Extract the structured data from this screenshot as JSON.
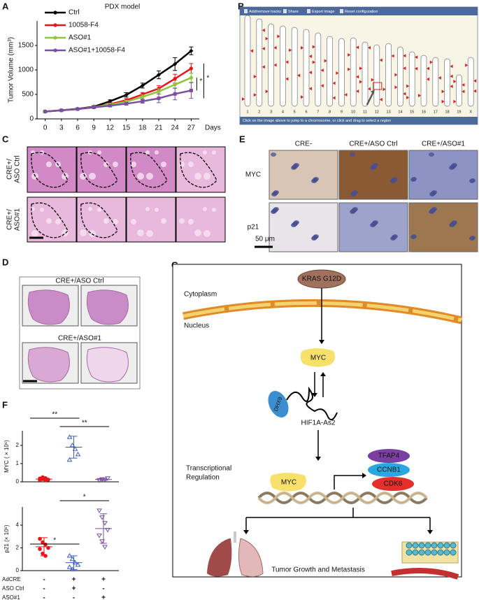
{
  "panel_letters": [
    "A",
    "B",
    "C",
    "D",
    "E",
    "F",
    "G"
  ],
  "chart_data": [
    {
      "type": "line",
      "title": "PDX model",
      "y_label": "Tumor Volume (mm³)",
      "x_label": "Days",
      "x": [
        0,
        3,
        6,
        9,
        12,
        15,
        18,
        21,
        24,
        27
      ],
      "xlim": [
        -1.5,
        28.5
      ],
      "xticks": [
        0,
        3,
        6,
        9,
        12,
        15,
        18,
        21,
        24,
        27
      ],
      "ylim": [
        0,
        2000
      ],
      "yticks": [
        0,
        500,
        1000,
        1500
      ],
      "series": [
        {
          "name": "Ctrl",
          "color": "#000000",
          "marker": "diamond",
          "values": [
            150,
            175,
            205,
            250,
            360,
            490,
            680,
            900,
            1120,
            1390
          ],
          "errors": [
            10,
            12,
            15,
            20,
            30,
            45,
            50,
            80,
            130,
            80
          ]
        },
        {
          "name": "10058-F4",
          "color": "#e8141b",
          "marker": "circle",
          "values": [
            150,
            175,
            200,
            240,
            300,
            380,
            500,
            620,
            820,
            1030
          ],
          "errors": [
            10,
            12,
            15,
            18,
            25,
            35,
            40,
            60,
            90,
            100
          ]
        },
        {
          "name": "ASO#1",
          "color": "#8dc63f",
          "marker": "circle",
          "values": [
            150,
            175,
            200,
            240,
            290,
            350,
            450,
            560,
            700,
            840
          ],
          "errors": [
            10,
            12,
            14,
            18,
            22,
            30,
            40,
            55,
            80,
            90
          ]
        },
        {
          "name": "ASO#1+10058-F4",
          "color": "#7b4fa0",
          "marker": "square",
          "values": [
            150,
            175,
            200,
            235,
            270,
            310,
            360,
            420,
            510,
            580
          ],
          "errors": [
            10,
            12,
            14,
            16,
            20,
            28,
            40,
            90,
            120,
            160
          ]
        }
      ],
      "annotations": [
        "*",
        "*"
      ]
    },
    {
      "type": "scatter",
      "y_label": "MYC ( × 10⁶)",
      "ylim": [
        0,
        2.8
      ],
      "yticks": [
        0,
        1,
        2
      ],
      "groups": [
        {
          "color": "#e8141b",
          "marker": "circle",
          "points": [
            0.1,
            0.15,
            0.2,
            0.12,
            0.18,
            0.25,
            0.08
          ],
          "mean": 0.15,
          "sd": 0.07
        },
        {
          "color": "#3b5bbf",
          "marker": "triangle",
          "points": [
            2.45,
            2.0,
            1.8,
            1.5,
            1.2
          ],
          "mean": 1.9,
          "sd": 0.6
        },
        {
          "color": "#7b4fa0",
          "marker": "triangle-down",
          "points": [
            0.1,
            0.15,
            0.12,
            0.2,
            0.08,
            0.14
          ],
          "mean": 0.13,
          "sd": 0.05
        }
      ],
      "annotations": [
        "**",
        "**"
      ]
    },
    {
      "type": "scatter",
      "y_label": "p21 (× 10⁶)",
      "ylim": [
        0,
        5.6
      ],
      "yticks": [
        0,
        2,
        4
      ],
      "groups": [
        {
          "color": "#e8141b",
          "marker": "circle",
          "points": [
            2.8,
            2.5,
            2.3,
            2.0,
            1.9,
            1.5,
            1.3
          ],
          "mean": 2.1,
          "sd": 0.8
        },
        {
          "color": "#3b5bbf",
          "marker": "triangle",
          "points": [
            1.3,
            1.0,
            0.7,
            0.5,
            0.3,
            0.1
          ],
          "mean": 0.7,
          "sd": 0.6
        },
        {
          "color": "#7b4fa0",
          "marker": "triangle-down",
          "points": [
            5.3,
            4.7,
            4.2,
            3.6,
            3.1,
            2.6,
            2.1
          ],
          "mean": 3.7,
          "sd": 1.3
        }
      ],
      "annotations": [
        "*",
        "*"
      ]
    }
  ],
  "conditions": [
    {
      "name": "AdCRE",
      "signs": [
        "-",
        "+",
        "+"
      ]
    },
    {
      "name": "ASO Ctrl",
      "signs": [
        "-",
        "+",
        "-"
      ]
    },
    {
      "name": "ASO#1",
      "signs": [
        "-",
        "-",
        "+"
      ]
    }
  ],
  "karyotype": {
    "toolbar": [
      "Add/remove tracks",
      "Share",
      "Export image",
      "Reset configuration"
    ],
    "chromosomes": [
      "1",
      "2",
      "3",
      "4",
      "5",
      "6",
      "7",
      "8",
      "9",
      "10",
      "11",
      "12",
      "13",
      "14",
      "15",
      "16",
      "17",
      "18",
      "19",
      "X"
    ],
    "footer": "Click on the image above to jump to a chromosome, or click and drag to select a region"
  },
  "histology_c": {
    "row_labels": [
      [
        "CRE+/",
        "ASO Ctrl"
      ],
      [
        "CRE+/",
        "ASO#1"
      ]
    ]
  },
  "histology_d": {
    "labels": [
      "CRE+/ASO Ctrl",
      "CRE+/ASO#1"
    ]
  },
  "ihc_e": {
    "columns": [
      "CRE-",
      "CRE+/ASO Ctrl",
      "CRE+/ASO#1"
    ],
    "rows": [
      "MYC",
      "p21"
    ],
    "scale": "50 μm"
  },
  "diagram": {
    "kras": "KRAS G12D",
    "cytoplasm": "Cytoplasm",
    "nucleus": "Nucleus",
    "myc_1": "MYC",
    "dhx9": "DHX9",
    "lncrna": "HIF1A-As2",
    "regulation": [
      "Transcriptional",
      "Regulation"
    ],
    "myc_2": "MYC",
    "targets": [
      "TFAP4",
      "CCNB1",
      "CDK6"
    ],
    "outcome": "Tumor Growth and Metastasis"
  }
}
